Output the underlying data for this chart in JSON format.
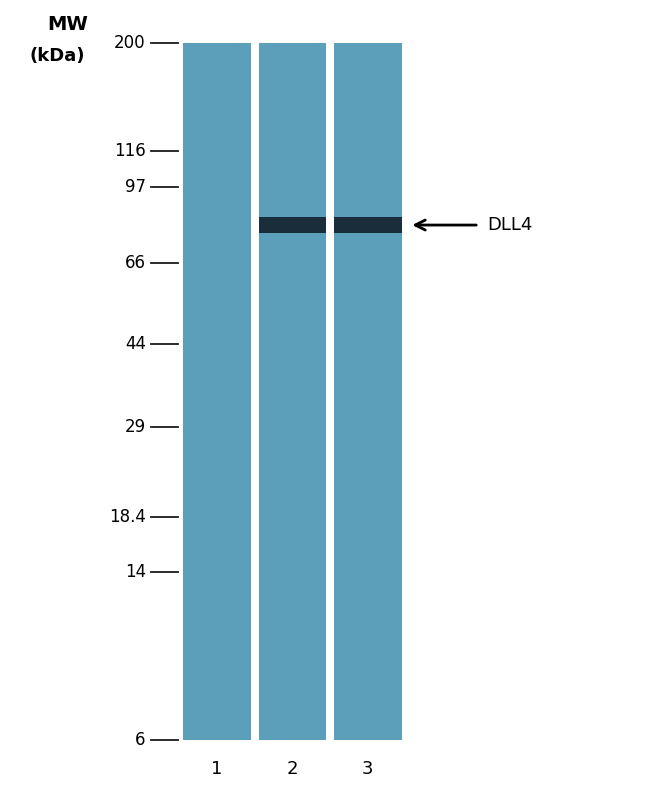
{
  "bg_color": "#ffffff",
  "lane_color": "#5b9fba",
  "band_color": "#1a2d3a",
  "marker_line_color": "#1a1a1a",
  "mw_labels": [
    "200",
    "116",
    "97",
    "66",
    "44",
    "29",
    "18.4",
    "14",
    "6"
  ],
  "mw_values": [
    200,
    116,
    97,
    66,
    44,
    29,
    18.4,
    14,
    6
  ],
  "mw_label_top1": "MW",
  "mw_label_top2": "(kDa)",
  "num_lanes": 3,
  "lane_labels": [
    "1",
    "2",
    "3"
  ],
  "dll4_band_kda": 80,
  "dll4_label": "DLL4",
  "title_fontsize": 14,
  "label_fontsize": 13,
  "tick_fontsize": 12,
  "mw_title_fontsize": 14
}
